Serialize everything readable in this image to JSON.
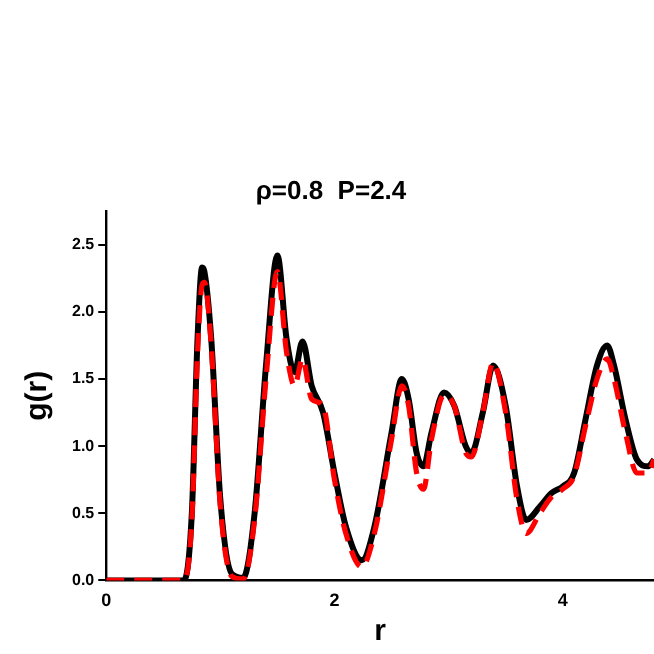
{
  "chart_data": {
    "type": "line",
    "title": "ρ=0.8  P=2.4",
    "xlabel": "r",
    "ylabel": "g(r)",
    "xlim": [
      0,
      4.8
    ],
    "xticks": [
      0,
      2,
      4
    ],
    "ylim": [
      0,
      2.75
    ],
    "yticks": [
      {
        "value": 0,
        "label": "0.0"
      },
      {
        "value": 0.5,
        "label": "0.5"
      },
      {
        "value": 1,
        "label": "1.0"
      },
      {
        "value": 1.5,
        "label": "1.5"
      },
      {
        "value": 2,
        "label": "2.0"
      },
      {
        "value": 2.5,
        "label": "2.5"
      }
    ],
    "grid": false,
    "legend": false,
    "marker": "none",
    "series": [
      {
        "color": "#000000",
        "line_style": "solid",
        "x": [
          0,
          0.68,
          0.75,
          0.8,
          0.84,
          0.86,
          0.92,
          1.0,
          1.1,
          1.2,
          1.3,
          1.4,
          1.5,
          1.58,
          1.65,
          1.72,
          1.8,
          1.9,
          2.0,
          2.1,
          2.24,
          2.35,
          2.5,
          2.59,
          2.65,
          2.72,
          2.78,
          2.85,
          2.96,
          3.05,
          3.15,
          3.2,
          3.3,
          3.39,
          3.5,
          3.6,
          3.68,
          3.8,
          3.9,
          4.0,
          4.1,
          4.2,
          4.3,
          4.39,
          4.45,
          4.55,
          4.65,
          4.75,
          4.8
        ],
        "values": [
          0,
          0,
          0.5,
          1.8,
          2.33,
          2.3,
          1.8,
          0.6,
          0.05,
          0.02,
          0.5,
          1.6,
          2.42,
          1.8,
          1.55,
          1.78,
          1.45,
          1.25,
          0.8,
          0.4,
          0.15,
          0.4,
          1.1,
          1.5,
          1.35,
          0.95,
          0.85,
          1.1,
          1.4,
          1.3,
          1.0,
          0.95,
          1.25,
          1.6,
          1.3,
          0.7,
          0.45,
          0.55,
          0.65,
          0.7,
          0.8,
          1.2,
          1.6,
          1.75,
          1.6,
          1.2,
          0.9,
          0.85,
          0.9
        ]
      },
      {
        "color": "#ff0000",
        "line_style": "dashed",
        "x": [
          0,
          0.68,
          0.75,
          0.8,
          0.84,
          0.86,
          0.92,
          1.0,
          1.1,
          1.2,
          1.3,
          1.4,
          1.5,
          1.58,
          1.65,
          1.72,
          1.8,
          1.9,
          2.0,
          2.1,
          2.24,
          2.35,
          2.5,
          2.59,
          2.65,
          2.72,
          2.78,
          2.85,
          2.96,
          3.05,
          3.15,
          3.2,
          3.3,
          3.39,
          3.5,
          3.6,
          3.68,
          3.8,
          3.9,
          4.0,
          4.1,
          4.2,
          4.3,
          4.39,
          4.45,
          4.55,
          4.65,
          4.75,
          4.8
        ],
        "values": [
          0,
          0,
          0.45,
          1.7,
          2.2,
          2.22,
          1.75,
          0.55,
          0.03,
          0.01,
          0.45,
          1.5,
          2.3,
          1.7,
          1.45,
          1.65,
          1.35,
          1.3,
          0.75,
          0.35,
          0.1,
          0.35,
          1.05,
          1.45,
          1.3,
          0.8,
          0.68,
          1.05,
          1.38,
          1.3,
          0.95,
          0.92,
          1.25,
          1.62,
          1.25,
          0.6,
          0.35,
          0.5,
          0.62,
          0.68,
          0.78,
          1.15,
          1.5,
          1.65,
          1.5,
          1.1,
          0.8,
          0.8,
          0.9
        ]
      }
    ]
  }
}
